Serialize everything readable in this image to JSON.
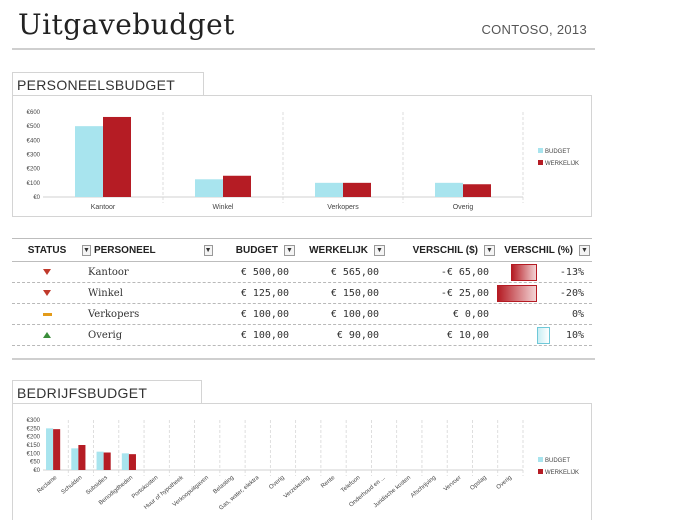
{
  "header": {
    "title": "Uitgavebudget",
    "company": "CONTOSO, 2013"
  },
  "personnel": {
    "section_title": "PERSONEELSBUDGET",
    "chart_data": {
      "type": "bar",
      "categories": [
        "Kantoor",
        "Winkel",
        "Verkopers",
        "Overig"
      ],
      "series": [
        {
          "name": "BUDGET",
          "values": [
            500,
            125,
            100,
            100
          ]
        },
        {
          "name": "WERKELIJK",
          "values": [
            565,
            150,
            100,
            90
          ]
        }
      ],
      "ylim": [
        0,
        600
      ],
      "yticks": [
        "€0",
        "€100",
        "€200",
        "€300",
        "€400",
        "€500",
        "€600"
      ],
      "legend": "right",
      "colors": [
        "#a8e4ee",
        "#b51c24"
      ]
    }
  },
  "table": {
    "headers": {
      "status": "STATUS",
      "name": "PERSONEEL",
      "budget": "BUDGET",
      "actual": "WERKELIJK",
      "diff": "VERSCHIL ($)",
      "pct": "VERSCHIL (%)"
    },
    "filter_glyph": "▼",
    "rows": [
      {
        "status": "down",
        "name": "Kantoor",
        "budget": "€ 500,00",
        "actual": "€ 565,00",
        "diff": "-€ 65,00",
        "pct": "-13%",
        "pct_value": -0.13
      },
      {
        "status": "down",
        "name": "Winkel",
        "budget": "€ 125,00",
        "actual": "€ 150,00",
        "diff": "-€ 25,00",
        "pct": "-20%",
        "pct_value": -0.2
      },
      {
        "status": "flat",
        "name": "Verkopers",
        "budget": "€ 100,00",
        "actual": "€ 100,00",
        "diff": "€ 0,00",
        "pct": "0%",
        "pct_value": 0
      },
      {
        "status": "up",
        "name": "Overig",
        "budget": "€ 100,00",
        "actual": "€ 90,00",
        "diff": "€ 10,00",
        "pct": "10%",
        "pct_value": 0.1
      }
    ]
  },
  "business": {
    "section_title": "BEDRIJFSBUDGET",
    "chart_data": {
      "type": "bar",
      "categories": [
        "Reclame",
        "Schulden",
        "Subsidies",
        "Benodigdheden",
        "Portokosten",
        "Huur of hypotheek",
        "Verkoopuitgaven",
        "Belasting",
        "Gas, water, elektra",
        "Overig",
        "Verzekering",
        "Rente",
        "Telefoon",
        "Onderhoud en ...",
        "Juridische kosten",
        "Afschrijving",
        "Vervoer",
        "Opslag",
        "Overig"
      ],
      "series": [
        {
          "name": "BUDGET",
          "values": [
            250,
            130,
            110,
            100,
            0,
            0,
            0,
            0,
            0,
            0,
            0,
            0,
            0,
            0,
            0,
            0,
            0,
            0,
            0
          ]
        },
        {
          "name": "WERKELIJK",
          "values": [
            245,
            150,
            105,
            95,
            0,
            0,
            0,
            0,
            0,
            0,
            0,
            0,
            0,
            0,
            0,
            0,
            0,
            0,
            0
          ]
        }
      ],
      "ylim": [
        0,
        300
      ],
      "yticks": [
        "€0",
        "€50",
        "€100",
        "€150",
        "€200",
        "€250",
        "€300"
      ],
      "legend": "right",
      "colors": [
        "#a8e4ee",
        "#b51c24"
      ]
    }
  }
}
